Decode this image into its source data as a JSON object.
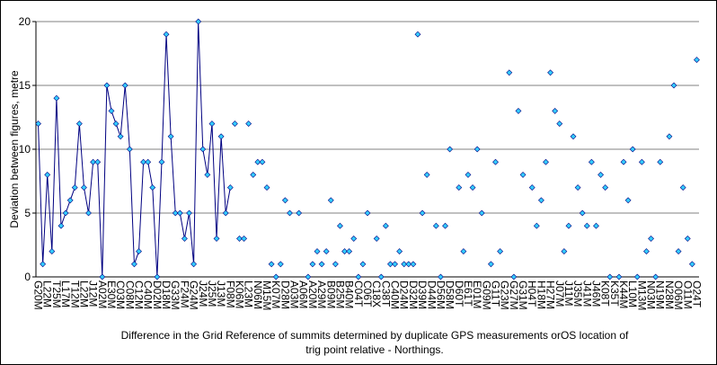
{
  "chart_data": {
    "type": "line",
    "xlabel": [
      "Difference in the Grid Reference of summits determined by duplicate GPS measurements orOS location of",
      "trig point relative - Northings."
    ],
    "ylabel": "Deviation between figures, metre",
    "ylim": [
      0,
      20
    ],
    "yticks": [
      0,
      5,
      10,
      15,
      20
    ],
    "grid": true,
    "categories": [
      "G20M",
      null,
      "L22M",
      null,
      "T25M",
      null,
      "L17M",
      null,
      "T12M",
      null,
      "L22M",
      null,
      "J12M",
      null,
      "A02M",
      null,
      "E30M",
      null,
      "C03M",
      null,
      "C08M",
      null,
      "C12M",
      null,
      "C40M",
      null,
      "D02M",
      null,
      "D18M",
      null,
      "G33M",
      null,
      "F24M",
      null,
      "G24M",
      null,
      "J24M",
      null,
      "J25M",
      null,
      "J13M",
      null,
      "F08M",
      null,
      "K06M",
      null,
      "L23M",
      null,
      "N06M",
      null,
      "M15M",
      null,
      "K07M",
      null,
      "D28M",
      null,
      "A03M",
      null,
      "A06M",
      null,
      "A20M",
      null,
      "A29M",
      null,
      "B09M",
      null,
      "B25M",
      null,
      "B40M",
      null,
      "C04T",
      null,
      "C06T",
      null,
      "C18X",
      null,
      "C38T",
      null,
      "C40M",
      null,
      "D24M",
      null,
      "D32M",
      null,
      "D39M",
      null,
      "D44M",
      null,
      "D56M",
      null,
      "D58M",
      null,
      "D60T",
      null,
      "E61T",
      null,
      "E01M",
      null,
      "G09M",
      null,
      "G11T",
      null,
      "G23M",
      null,
      "G27M",
      null,
      "G31M",
      null,
      "H04T",
      null,
      "H18M",
      null,
      "H27M",
      null,
      "J07M",
      null,
      "J11M",
      null,
      "J35M",
      null,
      "J41M",
      null,
      "J46M",
      null,
      "K08T",
      null,
      "K35T",
      null,
      "K44M",
      null,
      "L10M",
      null,
      "M13M",
      null,
      "N03M",
      null,
      "N19M",
      null,
      "N28M",
      null,
      "O06M",
      null,
      "O11M",
      null,
      "O24T"
    ],
    "series": [
      {
        "color": "#000080",
        "marker_color": "#33ccff",
        "line": true,
        "values": [
          12,
          1,
          8,
          2,
          14,
          4,
          5,
          6,
          7,
          12,
          7,
          5,
          9,
          9,
          0,
          15,
          13,
          12,
          11,
          15,
          10,
          1,
          2,
          9,
          9,
          7,
          0,
          9,
          19,
          11,
          5,
          5,
          3,
          5,
          1,
          20,
          10,
          8,
          12,
          3,
          11,
          5,
          7,
          null,
          null,
          null,
          null,
          null,
          null,
          null,
          null,
          null,
          null,
          null,
          null,
          null,
          null,
          null,
          null,
          null,
          null,
          null,
          null,
          null,
          null,
          null,
          null,
          null,
          null,
          null,
          null,
          null,
          null,
          null,
          null,
          null,
          null,
          null,
          null,
          null,
          null,
          null,
          null,
          null,
          null,
          null,
          null,
          null,
          null,
          null,
          null,
          null,
          null,
          null,
          null,
          null,
          null,
          null,
          null,
          null,
          null,
          null,
          null,
          null,
          null,
          null,
          null,
          null,
          null,
          null,
          null,
          null,
          null,
          null,
          null,
          null,
          null,
          null,
          null,
          null,
          null,
          null,
          null,
          null,
          null,
          null,
          null,
          null,
          null,
          null,
          null,
          null,
          null,
          null,
          null,
          null,
          null,
          null,
          null,
          null,
          null,
          null,
          null,
          null,
          null
        ]
      },
      {
        "color": "#000080",
        "marker_color": "#33ccff",
        "line": false,
        "values": [
          null,
          null,
          null,
          null,
          null,
          null,
          null,
          null,
          null,
          null,
          null,
          null,
          null,
          null,
          null,
          null,
          null,
          null,
          null,
          null,
          null,
          null,
          null,
          null,
          null,
          null,
          null,
          null,
          null,
          null,
          null,
          null,
          null,
          null,
          null,
          null,
          null,
          null,
          null,
          null,
          null,
          null,
          null,
          12,
          3,
          3,
          12,
          8,
          9,
          9,
          7,
          1,
          0,
          1,
          6,
          5,
          null,
          5,
          null,
          0,
          1,
          2,
          1,
          2,
          6,
          1,
          4,
          2,
          2,
          3,
          0,
          1,
          5,
          null,
          3,
          0,
          4,
          1,
          1,
          2,
          1,
          1,
          1,
          19,
          5,
          8,
          null,
          4,
          0,
          4,
          10,
          null,
          7,
          2,
          8,
          7,
          10,
          5,
          null,
          1,
          9,
          2,
          null,
          16,
          0,
          13,
          8,
          null,
          7,
          4,
          6,
          9,
          16,
          13,
          12,
          2,
          4,
          11,
          7,
          5,
          4,
          9,
          4,
          8,
          7,
          0,
          null,
          0,
          9,
          6,
          10,
          0,
          9,
          2,
          3,
          0,
          9,
          null,
          11,
          15,
          2,
          7,
          3,
          1,
          17
        ]
      }
    ]
  }
}
